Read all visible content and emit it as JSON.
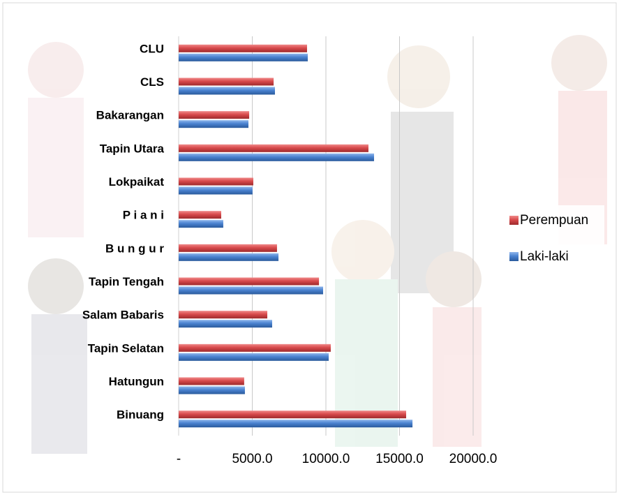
{
  "chart_data": {
    "type": "hbar",
    "categories": [
      "CLU",
      "CLS",
      "Bakarangan",
      "Tapin Utara",
      "Lokpaikat",
      "P i a n i",
      "B u n g u r",
      "Tapin Tengah",
      "Salam Babaris",
      "Tapin Selatan",
      "Hatungun",
      "Binuang"
    ],
    "series": [
      {
        "name": "Perempuan",
        "color": "#c0393b",
        "values": [
          8720,
          6450,
          4790,
          12890,
          5070,
          2890,
          6680,
          9530,
          6020,
          10330,
          4450,
          15450
        ]
      },
      {
        "name": "Laki-laki",
        "color": "#3a72c0",
        "values": [
          8770,
          6540,
          4740,
          13270,
          5020,
          3030,
          6780,
          9810,
          6350,
          10190,
          4500,
          15880
        ]
      }
    ],
    "xlim": [
      0,
      25000
    ],
    "xticks": [
      {
        "value": 0,
        "label": "-"
      },
      {
        "value": 5000,
        "label": "5000.0"
      },
      {
        "value": 10000,
        "label": "10000.0"
      },
      {
        "value": 15000,
        "label": "15000.0"
      },
      {
        "value": 20000,
        "label": "20000.0"
      }
    ],
    "grid": true,
    "legend": "right"
  }
}
